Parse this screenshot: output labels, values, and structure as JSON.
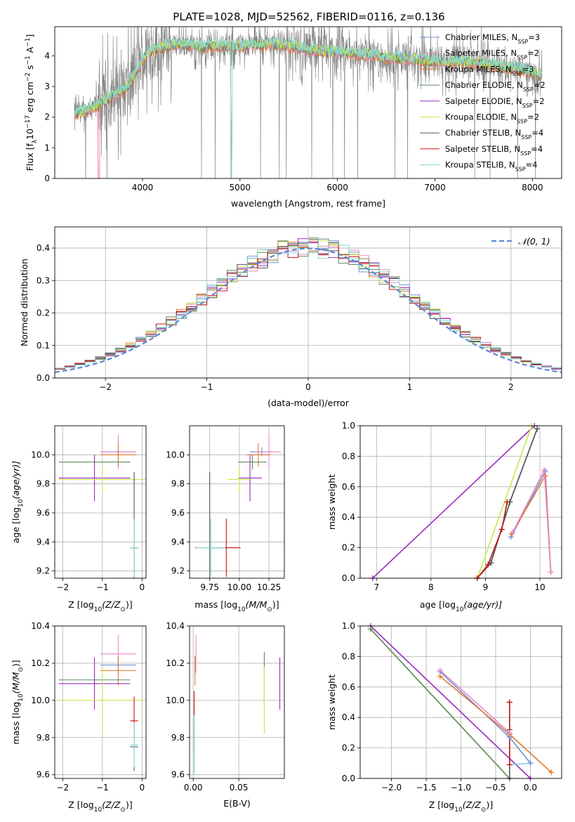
{
  "title": "PLATE=1028, MJD=52562, FIBERID=0116, z=0.136",
  "colors": {
    "Chabrier MILES": "#6f8fd6",
    "Salpeter MILES": "#e88ac9",
    "Kroupa MILES": "#e0782e",
    "Chabrier ELODIE": "#5c8a5c",
    "Salpeter ELODIE": "#9a2bc0",
    "Kroupa ELODIE": "#c8e84a",
    "Chabrier STELIB": "#555555",
    "Salpeter STELIB": "#cc1111",
    "Kroupa STELIB": "#7fd9d9",
    "gaussian": "#5b87d6",
    "spectrum": "#808080"
  },
  "chart_data": [
    {
      "id": "spectrum",
      "type": "line",
      "xlabel": "wavelength [Angstrom, rest frame]",
      "ylabel_main": "Flux [f",
      "ylabel_sub": "λ",
      "ylabel_rest": "10",
      "ylabel_exp": "−17",
      "ylabel_units": " erg cm",
      "ylabel_units_exp": "−2",
      "ylabel_s": " s",
      "ylabel_s_exp": "−1",
      "ylabel_A": " A",
      "ylabel_A_exp": "−1",
      "ylabel_close": "]",
      "xlim": [
        3100,
        8300
      ],
      "ylim": [
        0,
        4.95
      ],
      "xticks": [
        "4000",
        "5000",
        "6000",
        "7000",
        "8000"
      ],
      "xtick_values": [
        4000,
        5000,
        6000,
        7000,
        8000
      ],
      "yticks": [
        "0",
        "1",
        "2",
        "3",
        "4"
      ],
      "ytick_values": [
        0,
        1,
        2,
        3,
        4
      ],
      "data_range": [
        3300,
        8100
      ],
      "model_baseline": [
        [
          3300,
          2.1
        ],
        [
          3400,
          2.2
        ],
        [
          3550,
          2.4
        ],
        [
          3650,
          2.6
        ],
        [
          3750,
          2.8
        ],
        [
          3850,
          3.0
        ],
        [
          3950,
          3.6
        ],
        [
          4050,
          4.1
        ],
        [
          4200,
          4.3
        ],
        [
          4400,
          4.4
        ],
        [
          4600,
          4.3
        ],
        [
          4800,
          4.35
        ],
        [
          4900,
          4.3
        ],
        [
          5100,
          4.35
        ],
        [
          5300,
          4.4
        ],
        [
          5500,
          4.35
        ],
        [
          5700,
          4.2
        ],
        [
          5900,
          4.15
        ],
        [
          6100,
          4.1
        ],
        [
          6300,
          4.05
        ],
        [
          6500,
          3.95
        ],
        [
          6700,
          3.9
        ],
        [
          6900,
          3.85
        ],
        [
          7100,
          3.8
        ],
        [
          7300,
          3.8
        ],
        [
          7500,
          3.75
        ],
        [
          7700,
          3.65
        ],
        [
          7900,
          3.55
        ],
        [
          8050,
          3.4
        ]
      ],
      "legend": [
        {
          "label": "Chabrier MILES, N",
          "sub": "SSP",
          "tail": "=3"
        },
        {
          "label": "Salpeter MILES, N",
          "sub": "SSP",
          "tail": "=2"
        },
        {
          "label": "Kroupa MILES, N",
          "sub": "SSP",
          "tail": "=3"
        },
        {
          "label": "Chabrier ELODIE, N",
          "sub": "SSP",
          "tail": "=2"
        },
        {
          "label": "Salpeter ELODIE, N",
          "sub": "SSP",
          "tail": "=2"
        },
        {
          "label": "Kroupa ELODIE, N",
          "sub": "SSP",
          "tail": "=2"
        },
        {
          "label": "Chabrier STELIB, N",
          "sub": "SSP",
          "tail": "=4"
        },
        {
          "label": "Salpeter STELIB, N",
          "sub": "SSP",
          "tail": "=4"
        },
        {
          "label": "Kroupa STELIB, N",
          "sub": "SSP",
          "tail": "=4"
        }
      ]
    },
    {
      "id": "residuals",
      "type": "step",
      "xlabel": "(data-model)/error",
      "ylabel": "Normed distribution",
      "xlim": [
        -2.5,
        2.5
      ],
      "ylim": [
        0,
        0.465
      ],
      "xticks": [
        "−2",
        "−1",
        "0",
        "1",
        "2"
      ],
      "xtick_values": [
        -2,
        -1,
        0,
        1,
        2
      ],
      "yticks": [
        "0.0",
        "0.1",
        "0.2",
        "0.3",
        "0.4"
      ],
      "ytick_values": [
        0,
        0.1,
        0.2,
        0.3,
        0.4
      ],
      "bin_width": 0.1,
      "bin_start": -2.5,
      "gaussian_label": "𝒩(0, 1)"
    },
    {
      "id": "z_age",
      "type": "errorbar",
      "xlabel": "Z [log",
      "xlabel_sub": "10",
      "xlabel_tail": "(Z/Z",
      "xlabel_sun": "⊙",
      "xlabel_close": ")]",
      "ylabel": "age  [log",
      "ylabel_sub": "10",
      "ylabel_tail": "(age/yr)]",
      "xlim": [
        -2.2,
        0.1
      ],
      "ylim": [
        9.15,
        10.2
      ],
      "xticks": [
        "−2",
        "−1",
        "0"
      ],
      "xtick_values": [
        -2,
        -1,
        0
      ],
      "yticks": [
        "9.2",
        "9.4",
        "9.6",
        "9.8",
        "10.0"
      ],
      "ytick_values": [
        9.2,
        9.4,
        9.6,
        9.8,
        10.0
      ],
      "points": [
        {
          "s": "Chabrier MILES",
          "x": -0.6,
          "y": 10.02,
          "xerr": 0.45,
          "yerr": 0.03
        },
        {
          "s": "Salpeter MILES",
          "x": -0.6,
          "y": 10.02,
          "xerr": 0.45,
          "yerr": 0.12
        },
        {
          "s": "Kroupa MILES",
          "x": -0.6,
          "y": 10.0,
          "xerr": 0.45,
          "yerr": 0.08
        },
        {
          "s": "Chabrier ELODIE",
          "x": -1.2,
          "y": 9.95,
          "xerr": 0.9,
          "yerr": 0.05
        },
        {
          "s": "Salpeter ELODIE",
          "x": -1.2,
          "y": 9.84,
          "xerr": 0.9,
          "yerr": 0.16
        },
        {
          "s": "Kroupa ELODIE",
          "x": -1.0,
          "y": 9.83,
          "xerr": 1.1,
          "yerr": 0.09
        },
        {
          "s": "Chabrier STELIB",
          "x": -0.2,
          "y": 9.36,
          "xerr": 0.1,
          "yerr": 0.52
        },
        {
          "s": "Salpeter STELIB",
          "x": -0.2,
          "y": 9.36,
          "xerr": 0.1,
          "yerr": 0.2
        },
        {
          "s": "Kroupa STELIB",
          "x": -0.2,
          "y": 9.36,
          "xerr": 0.1,
          "yerr": 0.2
        }
      ]
    },
    {
      "id": "mass_age",
      "type": "errorbar",
      "xlabel": "mass [log",
      "xlabel_sub": "10",
      "xlabel_tail": "(M/M",
      "xlabel_sun": "⊙",
      "xlabel_close": ")]",
      "xlim": [
        9.58,
        10.38
      ],
      "ylim": [
        9.15,
        10.2
      ],
      "xticks": [
        "9.75",
        "10.00",
        "10.25"
      ],
      "xtick_values": [
        9.75,
        10.0,
        10.25
      ],
      "yticks": [
        "9.2",
        "9.4",
        "9.6",
        "9.8",
        "10.0"
      ],
      "ytick_values": [
        9.2,
        9.4,
        9.6,
        9.8,
        10.0
      ],
      "points": [
        {
          "s": "Chabrier MILES",
          "x": 10.19,
          "y": 10.02,
          "xerr": 0.1,
          "yerr": 0.03
        },
        {
          "s": "Salpeter MILES",
          "x": 10.25,
          "y": 10.02,
          "xerr": 0.1,
          "yerr": 0.12
        },
        {
          "s": "Kroupa MILES",
          "x": 10.16,
          "y": 10.0,
          "xerr": 0.1,
          "yerr": 0.08
        },
        {
          "s": "Chabrier ELODIE",
          "x": 10.11,
          "y": 9.95,
          "xerr": 0.12,
          "yerr": 0.05
        },
        {
          "s": "Salpeter ELODIE",
          "x": 10.09,
          "y": 9.84,
          "xerr": 0.1,
          "yerr": 0.16
        },
        {
          "s": "Kroupa ELODIE",
          "x": 10.0,
          "y": 9.83,
          "xerr": 0.1,
          "yerr": 0.09
        },
        {
          "s": "Chabrier STELIB",
          "x": 9.75,
          "y": 9.36,
          "xerr": 0.12,
          "yerr": 0.52
        },
        {
          "s": "Salpeter STELIB",
          "x": 9.89,
          "y": 9.36,
          "xerr": 0.12,
          "yerr": 0.2
        },
        {
          "s": "Kroupa STELIB",
          "x": 9.76,
          "y": 9.36,
          "xerr": 0.12,
          "yerr": 0.2
        }
      ]
    },
    {
      "id": "age_weight",
      "type": "line",
      "xlabel": "age  [log",
      "xlabel_sub": "10",
      "xlabel_tail": "(age/yr)]",
      "ylabel": "mass weight",
      "xlim": [
        6.7,
        10.4
      ],
      "ylim": [
        0,
        1.0
      ],
      "xticks": [
        "7",
        "8",
        "9",
        "10"
      ],
      "xtick_values": [
        7,
        8,
        9,
        10
      ],
      "yticks": [
        "0.0",
        "0.2",
        "0.4",
        "0.6",
        "0.8",
        "1.0"
      ],
      "ytick_values": [
        0,
        0.2,
        0.4,
        0.6,
        0.8,
        1.0
      ],
      "series": [
        {
          "s": "Salpeter ELODIE",
          "x": [
            6.93,
            9.9
          ],
          "y": [
            0.0,
            1.0
          ]
        },
        {
          "s": "Kroupa ELODIE",
          "x": [
            8.85,
            9.85
          ],
          "y": [
            0.0,
            1.0
          ]
        },
        {
          "s": "Chabrier ELODIE",
          "x": [
            8.85,
            9.1,
            9.45,
            9.95
          ],
          "y": [
            0.0,
            0.1,
            0.5,
            0.98
          ]
        },
        {
          "s": "Chabrier STELIB",
          "x": [
            8.85,
            9.1,
            9.45,
            9.95
          ],
          "y": [
            0.0,
            0.1,
            0.5,
            0.98
          ]
        },
        {
          "s": "Kroupa STELIB",
          "x": [
            8.85,
            9.05,
            9.3,
            9.4
          ],
          "y": [
            0.0,
            0.09,
            0.32,
            0.5
          ]
        },
        {
          "s": "Salpeter STELIB",
          "x": [
            8.85,
            9.05,
            9.3,
            9.4
          ],
          "y": [
            0.0,
            0.09,
            0.32,
            0.5
          ]
        },
        {
          "s": "Chabrier MILES",
          "x": [
            9.47,
            10.1,
            10.2
          ],
          "y": [
            0.27,
            0.7,
            0.04
          ]
        },
        {
          "s": "Kroupa MILES",
          "x": [
            9.48,
            10.1,
            10.2
          ],
          "y": [
            0.29,
            0.67,
            0.04
          ]
        },
        {
          "s": "Salpeter MILES",
          "x": [
            9.5,
            10.08,
            10.2
          ],
          "y": [
            0.3,
            0.71,
            0.04
          ]
        }
      ]
    },
    {
      "id": "z_mass",
      "type": "errorbar",
      "xlabel": "Z [log",
      "xlabel_sub": "10",
      "xlabel_tail": "(Z/Z",
      "xlabel_sun": "⊙",
      "xlabel_close": ")]",
      "ylabel": "mass [log",
      "ylabel_sub": "10",
      "ylabel_tail": "(M/M",
      "ylabel_sun": "⊙",
      "ylabel_close": ")]",
      "xlim": [
        -2.2,
        0.1
      ],
      "ylim": [
        9.58,
        10.4
      ],
      "xticks": [
        "−2",
        "−1",
        "0"
      ],
      "xtick_values": [
        -2,
        -1,
        0
      ],
      "yticks": [
        "9.6",
        "9.8",
        "10.0",
        "10.2",
        "10.4"
      ],
      "ytick_values": [
        9.6,
        9.8,
        10.0,
        10.2,
        10.4
      ],
      "points": [
        {
          "s": "Chabrier MILES",
          "x": -0.6,
          "y": 10.19,
          "xerr": 0.45,
          "yerr": 0.05
        },
        {
          "s": "Salpeter MILES",
          "x": -0.6,
          "y": 10.25,
          "xerr": 0.45,
          "yerr": 0.1
        },
        {
          "s": "Kroupa MILES",
          "x": -0.6,
          "y": 10.16,
          "xerr": 0.45,
          "yerr": 0.08
        },
        {
          "s": "Chabrier ELODIE",
          "x": -1.2,
          "y": 10.11,
          "xerr": 0.9,
          "yerr": 0.07
        },
        {
          "s": "Salpeter ELODIE",
          "x": -1.2,
          "y": 10.09,
          "xerr": 0.9,
          "yerr": 0.14
        },
        {
          "s": "Kroupa ELODIE",
          "x": -1.0,
          "y": 10.0,
          "xerr": 1.1,
          "yerr": 0.18
        },
        {
          "s": "Chabrier STELIB",
          "x": -0.2,
          "y": 9.75,
          "xerr": 0.1,
          "yerr": 0.13
        },
        {
          "s": "Salpeter STELIB",
          "x": -0.2,
          "y": 9.89,
          "xerr": 0.1,
          "yerr": 0.13
        },
        {
          "s": "Kroupa STELIB",
          "x": -0.2,
          "y": 9.76,
          "xerr": 0.1,
          "yerr": 0.12
        }
      ]
    },
    {
      "id": "ebv_mass",
      "type": "errorbar",
      "xlabel": "E(B-V)",
      "xlim": [
        -0.004,
        0.1
      ],
      "ylim": [
        9.58,
        10.4
      ],
      "xticks": [
        "0.00",
        "0.05"
      ],
      "xtick_values": [
        0,
        0.05
      ],
      "yticks": [
        "9.6",
        "9.8",
        "10.0",
        "10.2",
        "10.4"
      ],
      "ytick_values": [
        9.6,
        9.8,
        10.0,
        10.2,
        10.4
      ],
      "points": [
        {
          "s": "Chabrier MILES",
          "x": 0.002,
          "y": 10.19,
          "yerr": 0.05
        },
        {
          "s": "Salpeter MILES",
          "x": 0.003,
          "y": 10.25,
          "yerr": 0.1
        },
        {
          "s": "Kroupa MILES",
          "x": 0.002,
          "y": 10.16,
          "yerr": 0.08
        },
        {
          "s": "Chabrier ELODIE",
          "x": 0.078,
          "y": 10.11,
          "yerr": 0.15
        },
        {
          "s": "Salpeter ELODIE",
          "x": 0.095,
          "y": 10.09,
          "yerr": 0.14
        },
        {
          "s": "Kroupa ELODIE",
          "x": 0.078,
          "y": 10.0,
          "yerr": 0.18
        },
        {
          "s": "Chabrier STELIB",
          "x": 0.001,
          "y": 9.75,
          "yerr": 0.13
        },
        {
          "s": "Salpeter STELIB",
          "x": 0.001,
          "y": 9.89,
          "yerr": 0.16
        },
        {
          "s": "Kroupa STELIB",
          "x": 0.001,
          "y": 9.76,
          "yerr": 0.16
        }
      ]
    },
    {
      "id": "z_weight",
      "type": "line",
      "xlabel": "Z [log",
      "xlabel_sub": "10",
      "xlabel_tail": "(Z/Z",
      "xlabel_sun": "⊙",
      "xlabel_close": ")]",
      "ylabel": "mass weight",
      "xlim": [
        -2.45,
        0.45
      ],
      "ylim": [
        0,
        1.0
      ],
      "xticks": [
        "−2.0",
        "−1.5",
        "−1.0",
        "−0.5",
        "0.0"
      ],
      "xtick_values": [
        -2.0,
        -1.5,
        -1.0,
        -0.5,
        0.0
      ],
      "yticks": [
        "0.0",
        "0.2",
        "0.4",
        "0.6",
        "0.8",
        "1.0"
      ],
      "ytick_values": [
        0,
        0.2,
        0.4,
        0.6,
        0.8,
        1.0
      ],
      "series": [
        {
          "s": "Salpeter ELODIE",
          "x": [
            -2.3,
            0.0
          ],
          "y": [
            1.0,
            0.0
          ]
        },
        {
          "s": "Kroupa ELODIE",
          "x": [
            -2.3,
            -0.3
          ],
          "y": [
            0.98,
            0.0
          ]
        },
        {
          "s": "Chabrier ELODIE",
          "x": [
            -2.3,
            -0.3
          ],
          "y": [
            0.98,
            0.0
          ]
        },
        {
          "s": "Chabrier STELIB",
          "x": [
            -0.3,
            -0.3,
            -0.3
          ],
          "y": [
            0.5,
            0.32,
            0.0
          ]
        },
        {
          "s": "Kroupa STELIB",
          "x": [
            -0.3,
            -0.3,
            0.0
          ],
          "y": [
            0.5,
            0.09,
            0.1
          ]
        },
        {
          "s": "Salpeter STELIB",
          "x": [
            -0.3,
            -0.3
          ],
          "y": [
            0.5,
            0.09
          ]
        },
        {
          "s": "Chabrier MILES",
          "x": [
            -1.3,
            -0.3,
            0.0
          ],
          "y": [
            0.7,
            0.27,
            0.1
          ]
        },
        {
          "s": "Kroupa MILES",
          "x": [
            -1.3,
            -0.3,
            0.3
          ],
          "y": [
            0.67,
            0.29,
            0.04
          ]
        },
        {
          "s": "Salpeter MILES",
          "x": [
            -1.3,
            -0.3
          ],
          "y": [
            0.71,
            0.3
          ]
        }
      ]
    }
  ]
}
